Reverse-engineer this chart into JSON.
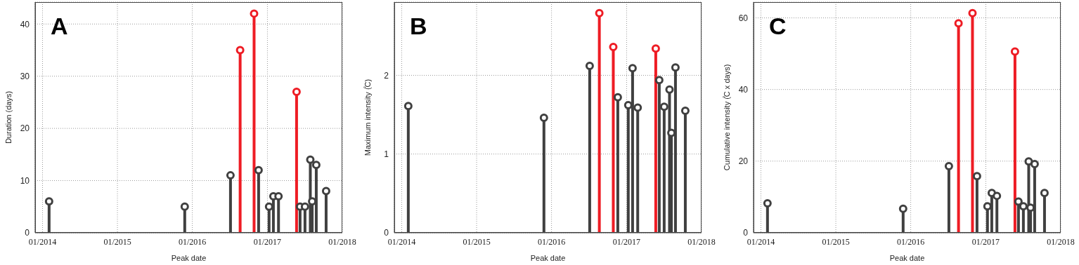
{
  "chart_data": [
    {
      "type": "lollipop",
      "annotations": [
        "A"
      ],
      "xlabel": "Peak date",
      "ylabel": "Duration (days)",
      "x": [
        "2014-02-02",
        "2015-11-25",
        "2016-07-05",
        "2016-08-21",
        "2016-10-28",
        "2016-11-19",
        "2017-01-09",
        "2017-01-30",
        "2017-02-24",
        "2017-05-23",
        "2017-06-09",
        "2017-07-03",
        "2017-07-29",
        "2017-08-07",
        "2017-08-27",
        "2017-10-14"
      ],
      "values": [
        6,
        5,
        11,
        35,
        42,
        12,
        5,
        7,
        7,
        27,
        5,
        5,
        14,
        6,
        13,
        8
      ],
      "colors": [
        "#404040",
        "#404040",
        "#404040",
        "#ee1c24",
        "#ee1c24",
        "#404040",
        "#404040",
        "#404040",
        "#404040",
        "#ee1c24",
        "#404040",
        "#404040",
        "#404040",
        "#404040",
        "#404040",
        "#404040"
      ],
      "xlim": [
        "2013-11-26",
        "2018-01-01"
      ],
      "xticks": [
        {
          "value": "2014-01-01",
          "label": "01/2014"
        },
        {
          "value": "2015-01-01",
          "label": "01/2015"
        },
        {
          "value": "2016-01-01",
          "label": "01/2016"
        },
        {
          "value": "2017-01-01",
          "label": "01/2017"
        },
        {
          "value": "2018-01-01",
          "label": "01/2018"
        }
      ],
      "ylim": [
        0,
        44.2
      ],
      "yticks": [
        0,
        10,
        20,
        30,
        40
      ],
      "grid": true,
      "marker": "circle"
    },
    {
      "type": "lollipop",
      "annotations": [
        "B"
      ],
      "xlabel": "Peak date",
      "ylabel": "Maximum intensity (̊C)",
      "x": [
        "2014-02-02",
        "2015-11-25",
        "2016-07-05",
        "2016-08-21",
        "2016-10-28",
        "2016-11-19",
        "2017-01-09",
        "2017-01-30",
        "2017-02-24",
        "2017-05-23",
        "2017-06-09",
        "2017-07-03",
        "2017-07-29",
        "2017-08-07",
        "2017-08-27",
        "2017-10-14"
      ],
      "values": [
        1.61,
        1.46,
        2.12,
        2.79,
        2.36,
        1.72,
        1.62,
        2.09,
        1.59,
        2.34,
        1.94,
        1.6,
        1.82,
        1.27,
        2.1,
        1.55
      ],
      "colors": [
        "#404040",
        "#404040",
        "#404040",
        "#ee1c24",
        "#ee1c24",
        "#404040",
        "#404040",
        "#404040",
        "#404040",
        "#ee1c24",
        "#404040",
        "#404040",
        "#404040",
        "#404040",
        "#404040",
        "#404040"
      ],
      "xlim": [
        "2013-11-26",
        "2018-01-01"
      ],
      "xticks": [
        {
          "value": "2014-01-01",
          "label": "01/2014"
        },
        {
          "value": "2015-01-01",
          "label": "01/2015"
        },
        {
          "value": "2016-01-01",
          "label": "01/2016"
        },
        {
          "value": "2017-01-01",
          "label": "01/2017"
        },
        {
          "value": "2018-01-01",
          "label": "01/2018"
        }
      ],
      "ylim": [
        0,
        2.93
      ],
      "yticks": [
        0,
        1,
        2
      ],
      "grid": true,
      "marker": "circle"
    },
    {
      "type": "lollipop",
      "annotations": [
        "C"
      ],
      "xlabel": "Peak date",
      "ylabel": "Cumulative intensity (̊C x days)",
      "x": [
        "2014-02-02",
        "2015-11-25",
        "2016-07-05",
        "2016-08-21",
        "2016-10-28",
        "2016-11-19",
        "2017-01-09",
        "2017-01-30",
        "2017-02-24",
        "2017-05-23",
        "2017-06-09",
        "2017-07-03",
        "2017-07-29",
        "2017-08-07",
        "2017-08-27",
        "2017-10-14"
      ],
      "values": [
        8.2,
        6.7,
        18.6,
        58.5,
        61.3,
        15.8,
        7.4,
        11.1,
        10.3,
        50.6,
        8.7,
        7.4,
        19.9,
        7,
        19.2,
        11.1
      ],
      "colors": [
        "#404040",
        "#404040",
        "#404040",
        "#ee1c24",
        "#ee1c24",
        "#404040",
        "#404040",
        "#404040",
        "#404040",
        "#ee1c24",
        "#404040",
        "#404040",
        "#404040",
        "#404040",
        "#404040",
        "#404040"
      ],
      "xlim": [
        "2013-11-26",
        "2018-01-01"
      ],
      "xticks": [
        {
          "value": "2014-01-01",
          "label": "01/2014"
        },
        {
          "value": "2015-01-01",
          "label": "01/2015"
        },
        {
          "value": "2016-01-01",
          "label": "01/2016"
        },
        {
          "value": "2017-01-01",
          "label": "01/2017"
        },
        {
          "value": "2018-01-01",
          "label": "01/2018"
        }
      ],
      "ylim": [
        0,
        64.4
      ],
      "yticks": [
        0,
        20,
        40,
        60
      ],
      "grid": true,
      "marker": "circle"
    }
  ]
}
